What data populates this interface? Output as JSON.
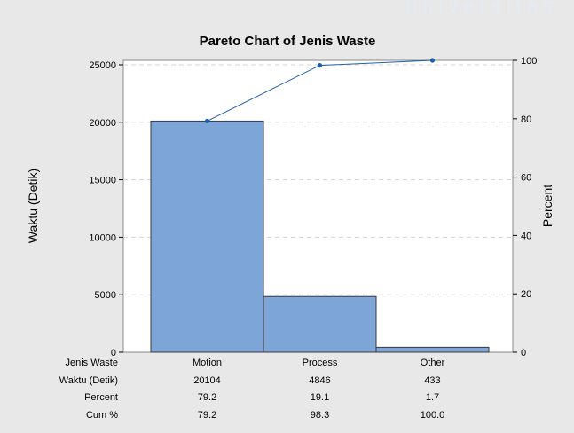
{
  "watermark_text": "universitas",
  "chart_data": {
    "type": "bar",
    "title": "Pareto Chart of Jenis Waste",
    "ylabel": "Waktu (Detik)",
    "y2label": "Percent",
    "categories": [
      "Motion",
      "Process",
      "Other"
    ],
    "values": [
      20104,
      4846,
      433
    ],
    "percent": [
      79.2,
      19.1,
      1.7
    ],
    "cum_percent": [
      79.2,
      98.3,
      100.0
    ],
    "ylim": [
      0,
      25383
    ],
    "y2lim": [
      0,
      100
    ],
    "y_ticks": [
      0,
      5000,
      10000,
      15000,
      20000,
      25000
    ],
    "y2_ticks": [
      0,
      20,
      40,
      60,
      80,
      100
    ],
    "bar_color": "#7da5d8",
    "line_color": "#1f5fa8",
    "table": {
      "row_labels": [
        "Jenis Waste",
        "Waktu (Detik)",
        "Percent",
        "Cum %"
      ],
      "rows": [
        [
          "Motion",
          "Process",
          "Other"
        ],
        [
          "20104",
          "4846",
          "433"
        ],
        [
          "79.2",
          "19.1",
          "1.7"
        ],
        [
          "79.2",
          "98.3",
          "100.0"
        ]
      ]
    }
  }
}
